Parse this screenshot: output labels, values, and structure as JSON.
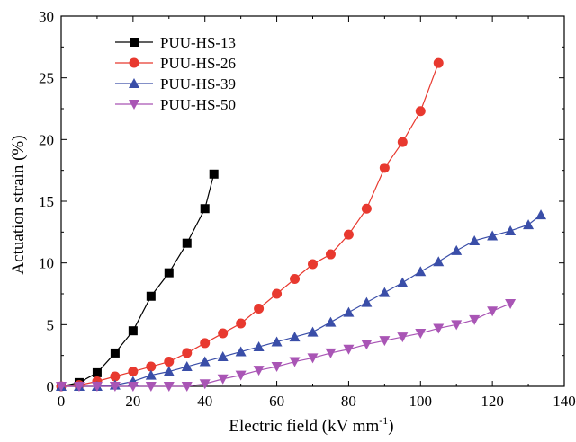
{
  "chart_data": {
    "type": "line",
    "title": "",
    "xlabel": "Electric field (kV mm",
    "xlabel_sup": "-1",
    "xlabel_suffix": ")",
    "ylabel": "Actuation strain (%)",
    "xlim": [
      0,
      140
    ],
    "ylim": [
      0,
      30
    ],
    "x_ticks": [
      "0",
      "20",
      "40",
      "60",
      "80",
      "100",
      "120",
      "140"
    ],
    "y_ticks": [
      "0",
      "5",
      "10",
      "15",
      "20",
      "25",
      "30"
    ],
    "grid": false,
    "legend_position": "top-left",
    "series": [
      {
        "name": "PUU-HS-13",
        "color": "#000000",
        "marker": "square",
        "x": [
          0,
          5,
          10,
          15,
          20,
          25,
          30,
          35,
          40,
          42.5
        ],
        "y": [
          0,
          0.3,
          1.1,
          2.7,
          4.5,
          7.3,
          9.2,
          11.6,
          14.4,
          17.2
        ]
      },
      {
        "name": "PUU-HS-26",
        "color": "#e8392f",
        "marker": "circle",
        "x": [
          0,
          5,
          10,
          15,
          20,
          25,
          30,
          35,
          40,
          45,
          50,
          55,
          60,
          65,
          70,
          75,
          80,
          85,
          90,
          95,
          100,
          105
        ],
        "y": [
          0,
          0.1,
          0.4,
          0.8,
          1.2,
          1.6,
          2.0,
          2.7,
          3.5,
          4.3,
          5.1,
          6.3,
          7.5,
          8.7,
          9.9,
          10.7,
          12.3,
          14.4,
          17.7,
          19.8,
          22.3,
          26.2
        ]
      },
      {
        "name": "PUU-HS-39",
        "color": "#3a4ea8",
        "marker": "triangle-up",
        "x": [
          0,
          5,
          10,
          15,
          20,
          25,
          30,
          35,
          40,
          45,
          50,
          55,
          60,
          65,
          70,
          75,
          80,
          85,
          90,
          95,
          100,
          105,
          110,
          115,
          120,
          125,
          130,
          133.5
        ],
        "y": [
          0,
          0,
          0,
          0.1,
          0.4,
          0.9,
          1.2,
          1.6,
          2.0,
          2.4,
          2.8,
          3.2,
          3.6,
          4.0,
          4.4,
          5.2,
          6.0,
          6.8,
          7.6,
          8.4,
          9.3,
          10.1,
          11.0,
          11.8,
          12.2,
          12.6,
          13.1,
          13.9
        ]
      },
      {
        "name": "PUU-HS-50",
        "color": "#a955b5",
        "marker": "triangle-down",
        "x": [
          0,
          5,
          10,
          15,
          20,
          25,
          30,
          35,
          40,
          45,
          50,
          55,
          60,
          65,
          70,
          75,
          80,
          85,
          90,
          95,
          100,
          105,
          110,
          115,
          120,
          125
        ],
        "y": [
          0,
          0,
          0,
          0,
          0,
          0,
          0,
          0,
          0.2,
          0.6,
          0.9,
          1.3,
          1.6,
          2.0,
          2.3,
          2.7,
          3.0,
          3.4,
          3.7,
          4.0,
          4.3,
          4.7,
          5.0,
          5.4,
          6.1,
          6.7
        ]
      }
    ]
  }
}
